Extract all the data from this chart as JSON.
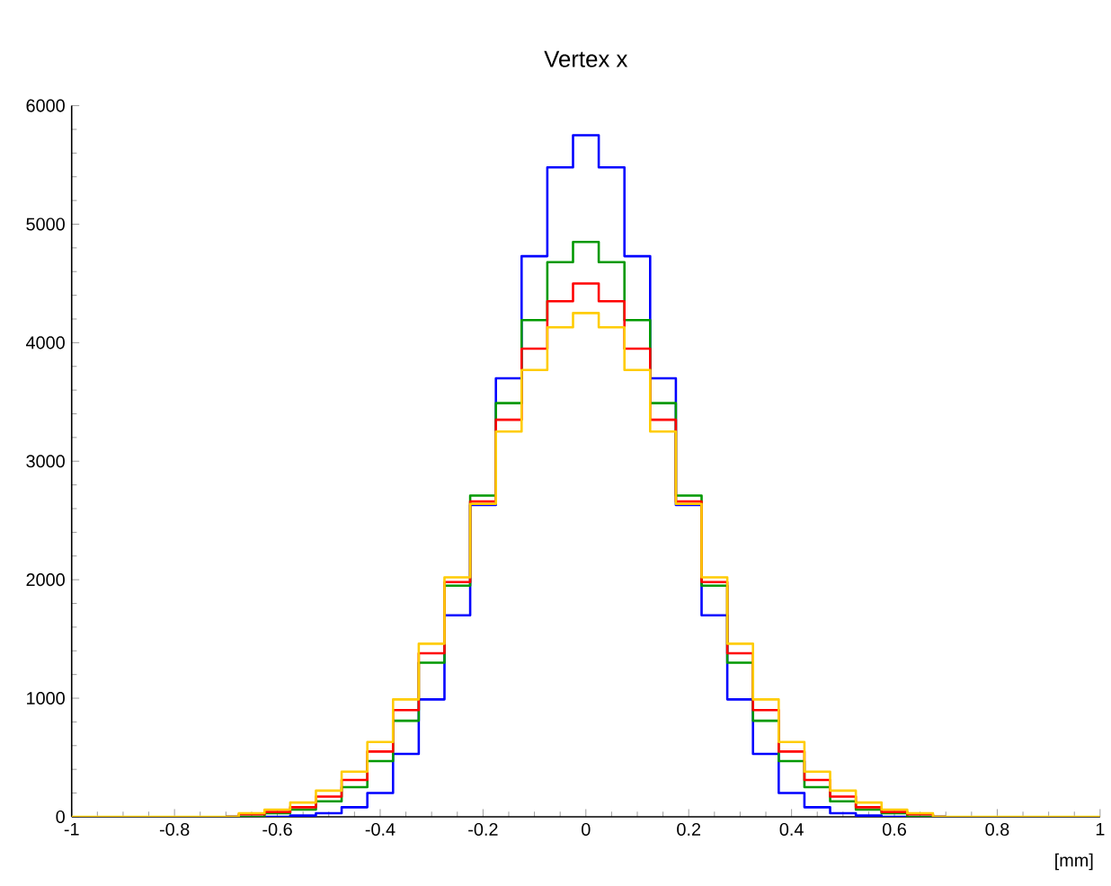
{
  "chart_data": {
    "type": "step",
    "title": "Vertex x",
    "xlabel": "[mm]",
    "x": [
      -1,
      -0.95,
      -0.9,
      -0.85,
      -0.8,
      -0.75,
      -0.7,
      -0.65,
      -0.6,
      -0.55,
      -0.5,
      -0.45,
      -0.4,
      -0.35,
      -0.3,
      -0.25,
      -0.2,
      -0.15,
      -0.1,
      -0.05,
      0,
      0.05,
      0.1,
      0.15,
      0.2,
      0.25,
      0.3,
      0.35,
      0.4,
      0.45,
      0.5,
      0.55,
      0.6,
      0.65,
      0.7,
      0.75,
      0.8,
      0.85,
      0.9,
      0.95,
      1
    ],
    "series": [
      {
        "color": "#0000ff",
        "values": [
          null,
          null,
          null,
          null,
          null,
          null,
          0,
          0,
          0,
          10,
          30,
          80,
          200,
          530,
          990,
          1700,
          2630,
          3700,
          4730,
          5480,
          5750,
          5480,
          4730,
          3700,
          2630,
          1700,
          990,
          530,
          200,
          80,
          30,
          10,
          0,
          0,
          0,
          null,
          null,
          null,
          null,
          null,
          null
        ]
      },
      {
        "color": "#009900",
        "values": [
          null,
          null,
          null,
          null,
          null,
          null,
          0,
          0,
          30,
          60,
          130,
          250,
          470,
          810,
          1300,
          1950,
          2710,
          3490,
          4190,
          4680,
          4850,
          4680,
          4190,
          3490,
          2710,
          1950,
          1300,
          810,
          470,
          250,
          130,
          60,
          30,
          0,
          0,
          null,
          null,
          null,
          null,
          null,
          null
        ]
      },
      {
        "color": "#ff0000",
        "values": [
          null,
          null,
          null,
          null,
          null,
          null,
          0,
          20,
          40,
          80,
          170,
          310,
          550,
          900,
          1380,
          1980,
          2660,
          3350,
          3950,
          4350,
          4500,
          4350,
          3950,
          3350,
          2660,
          1980,
          1380,
          900,
          550,
          310,
          170,
          80,
          40,
          20,
          0,
          null,
          null,
          null,
          null,
          null,
          null
        ]
      },
      {
        "color": "#ffcc00",
        "values": [
          0,
          0,
          0,
          0,
          0,
          0,
          0,
          30,
          60,
          120,
          220,
          380,
          630,
          990,
          1460,
          2020,
          2640,
          3250,
          3770,
          4130,
          4250,
          4130,
          3770,
          3250,
          2640,
          2020,
          1460,
          990,
          630,
          380,
          220,
          120,
          60,
          30,
          0,
          0,
          0,
          0,
          0,
          0,
          0
        ]
      }
    ],
    "xlim": [
      -1,
      1
    ],
    "ylim": [
      0,
      6000
    ],
    "xticks": [
      -1,
      -0.8,
      -0.6,
      -0.4,
      -0.2,
      0,
      0.2,
      0.4,
      0.6,
      0.8,
      1
    ],
    "yticks": [
      0,
      1000,
      2000,
      3000,
      4000,
      5000,
      6000
    ],
    "marker": "none",
    "line_style": "solid"
  }
}
